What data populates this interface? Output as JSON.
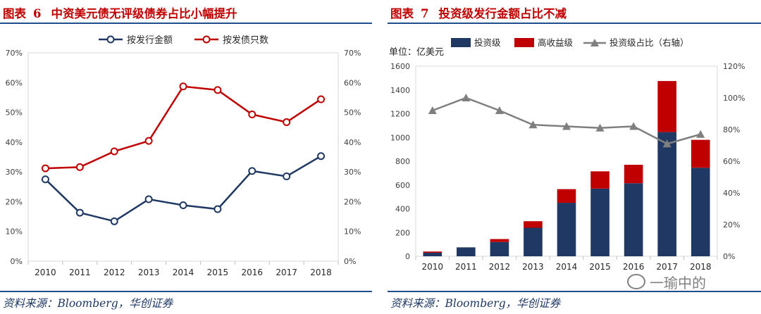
{
  "left_panel": {
    "label": "图表",
    "number": "6",
    "title": "中资美元债无评级债券占比小幅提升",
    "source": "资料来源：Bloomberg，华创证券"
  },
  "right_panel": {
    "label": "图表",
    "number": "7",
    "title": "投资级发行金额占比不减",
    "source": "资料来源：Bloomberg，华创证券"
  },
  "watermark": "一瑜中的",
  "colors": {
    "navy": "#1f3864",
    "red": "#c00000",
    "gray": "#7f7f7f",
    "title_red": "#c00000",
    "rule_blue": "#1f4e8c"
  },
  "chart_data": [
    {
      "type": "line",
      "title": "中资美元债无评级债券占比小幅提升",
      "categories": [
        "2010",
        "2011",
        "2012",
        "2013",
        "2014",
        "2015",
        "2016",
        "2017",
        "2018"
      ],
      "series": [
        {
          "name": "按发行金额",
          "color": "#1f3864",
          "values": [
            27.5,
            16.3,
            13.4,
            20.8,
            18.8,
            17.5,
            30.3,
            28.5,
            35.3
          ]
        },
        {
          "name": "按发债只数",
          "color": "#c00000",
          "values": [
            31.2,
            31.6,
            36.9,
            40.4,
            58.7,
            57.5,
            49.3,
            46.7,
            54.4
          ]
        }
      ],
      "ylim": [
        0,
        70
      ],
      "yticks": [
        "0%",
        "10%",
        "20%",
        "30%",
        "40%",
        "50%",
        "60%",
        "70%"
      ],
      "y2ticks": [
        "0%",
        "10%",
        "20%",
        "30%",
        "40%",
        "50%",
        "60%",
        "70%"
      ],
      "legend_position": "top"
    },
    {
      "type": "bar",
      "stacked": true,
      "title": "投资级发行金额占比不减",
      "unit_label": "单位：亿美元",
      "categories": [
        "2010",
        "2011",
        "2012",
        "2013",
        "2014",
        "2015",
        "2016",
        "2017",
        "2018"
      ],
      "series": [
        {
          "name": "投资级",
          "color": "#1f3864",
          "values": [
            30,
            75,
            120,
            240,
            450,
            570,
            615,
            1045,
            745
          ]
        },
        {
          "name": "高收益级",
          "color": "#c00000",
          "values": [
            10,
            0,
            25,
            55,
            115,
            145,
            155,
            430,
            235
          ]
        }
      ],
      "line": {
        "name": "投资级占比（右轴）",
        "color": "#7f7f7f",
        "values": [
          92,
          100,
          92,
          83,
          82,
          81,
          82,
          71,
          77
        ]
      },
      "ylim": [
        0,
        1600
      ],
      "y2lim": [
        0,
        120
      ],
      "yticks": [
        "0",
        "200",
        "400",
        "600",
        "800",
        "1000",
        "1200",
        "1400",
        "1600"
      ],
      "y2ticks": [
        "0%",
        "20%",
        "40%",
        "60%",
        "80%",
        "100%",
        "120%"
      ],
      "legend_position": "top"
    }
  ]
}
